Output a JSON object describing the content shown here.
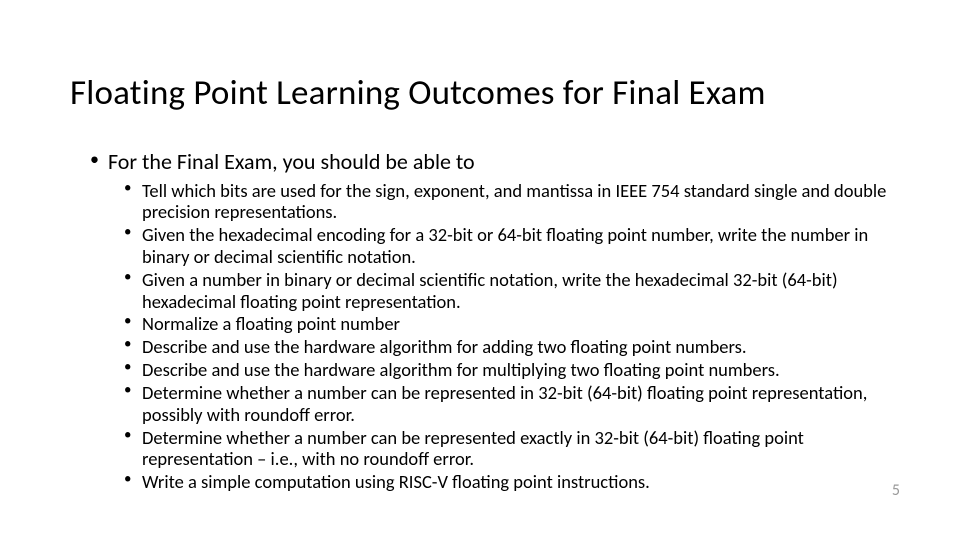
{
  "slide": {
    "title": "Floating Point Learning Outcomes for Final Exam",
    "intro": "For the Final Exam, you should be able to",
    "bullets": [
      "Tell which bits are used for the sign, exponent, and mantissa in IEEE 754 standard single and double precision representations.",
      "Given the hexadecimal encoding for a 32-bit or 64-bit floating point number, write the number in binary or decimal scientific notation.",
      "Given a number in binary or decimal scientific notation, write the hexadecimal 32-bit (64-bit) hexadecimal floating point representation.",
      "Normalize a floating point number",
      "Describe and use the hardware algorithm for adding two floating point numbers.",
      "Describe and use the hardware algorithm for multiplying two floating point numbers.",
      "Determine whether a number can be represented in 32-bit (64-bit) floating point representation, possibly with roundoff error.",
      "Determine whether a number can be represented exactly in 32-bit (64-bit) floating point representation – i.e., with no roundoff error.",
      "Write a simple computation using RISC-V floating point instructions."
    ],
    "page_number": "5"
  },
  "style": {
    "background_color": "#ffffff",
    "title_fontsize": 35,
    "intro_fontsize": 22,
    "bullet_fontsize": 18.5,
    "pagenum_color": "#9a9a9a",
    "text_color": "#000000",
    "font_family": "Calibri"
  }
}
